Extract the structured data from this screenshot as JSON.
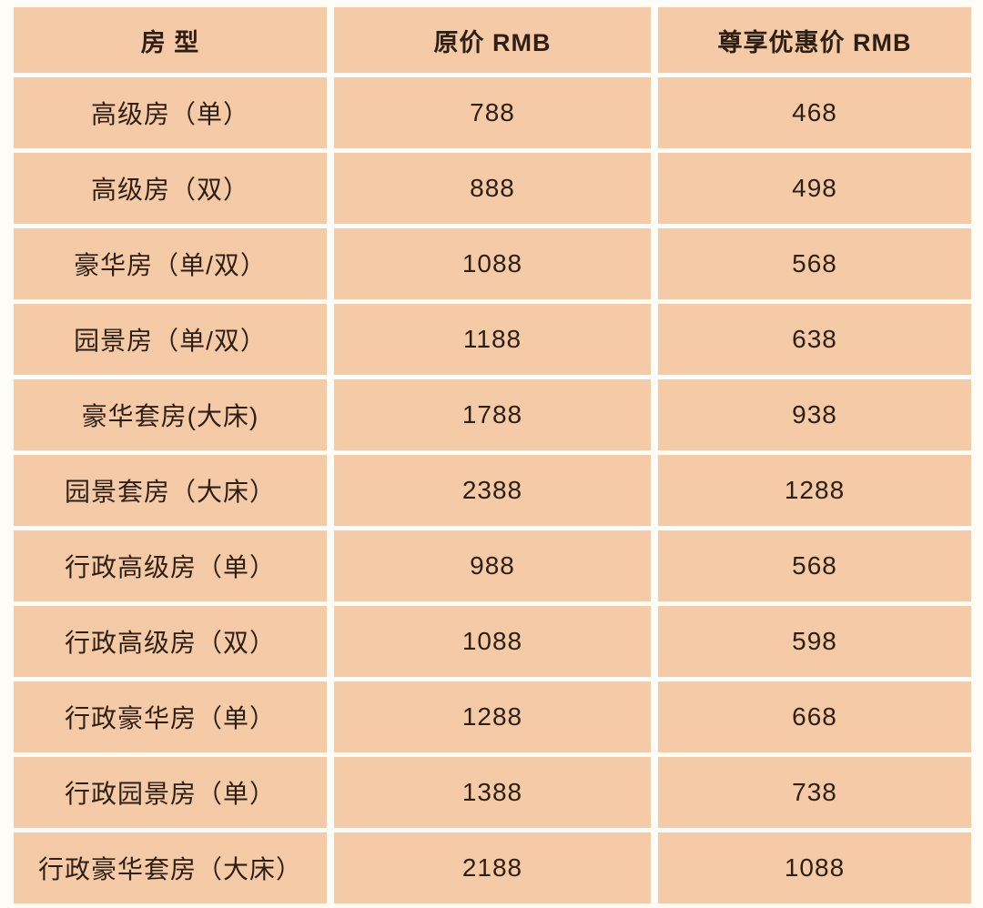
{
  "colors": {
    "cell_background": "#F5CBA7",
    "page_background": "#FDFCF6",
    "text": "#2E1F14"
  },
  "table": {
    "columns": [
      {
        "key": "room",
        "label": "房 型"
      },
      {
        "key": "original",
        "label": "原价 RMB"
      },
      {
        "key": "discount",
        "label": "尊享优惠价 RMB"
      }
    ],
    "rows": [
      {
        "room": "高级房（单）",
        "original": "788",
        "discount": "468"
      },
      {
        "room": "高级房（双）",
        "original": "888",
        "discount": "498"
      },
      {
        "room": "豪华房（单/双）",
        "original": "1088",
        "discount": "568"
      },
      {
        "room": "园景房（单/双）",
        "original": "1188",
        "discount": "638"
      },
      {
        "room": "豪华套房(大床)",
        "original": "1788",
        "discount": "938"
      },
      {
        "room": "园景套房（大床）",
        "original": "2388",
        "discount": "1288"
      },
      {
        "room": "行政高级房（单）",
        "original": "988",
        "discount": "568"
      },
      {
        "room": "行政高级房（双）",
        "original": "1088",
        "discount": "598"
      },
      {
        "room": "行政豪华房（单）",
        "original": "1288",
        "discount": "668"
      },
      {
        "room": "行政园景房（单）",
        "original": "1388",
        "discount": "738"
      },
      {
        "room": "行政豪华套房（大床）",
        "original": "2188",
        "discount": "1088"
      }
    ]
  }
}
